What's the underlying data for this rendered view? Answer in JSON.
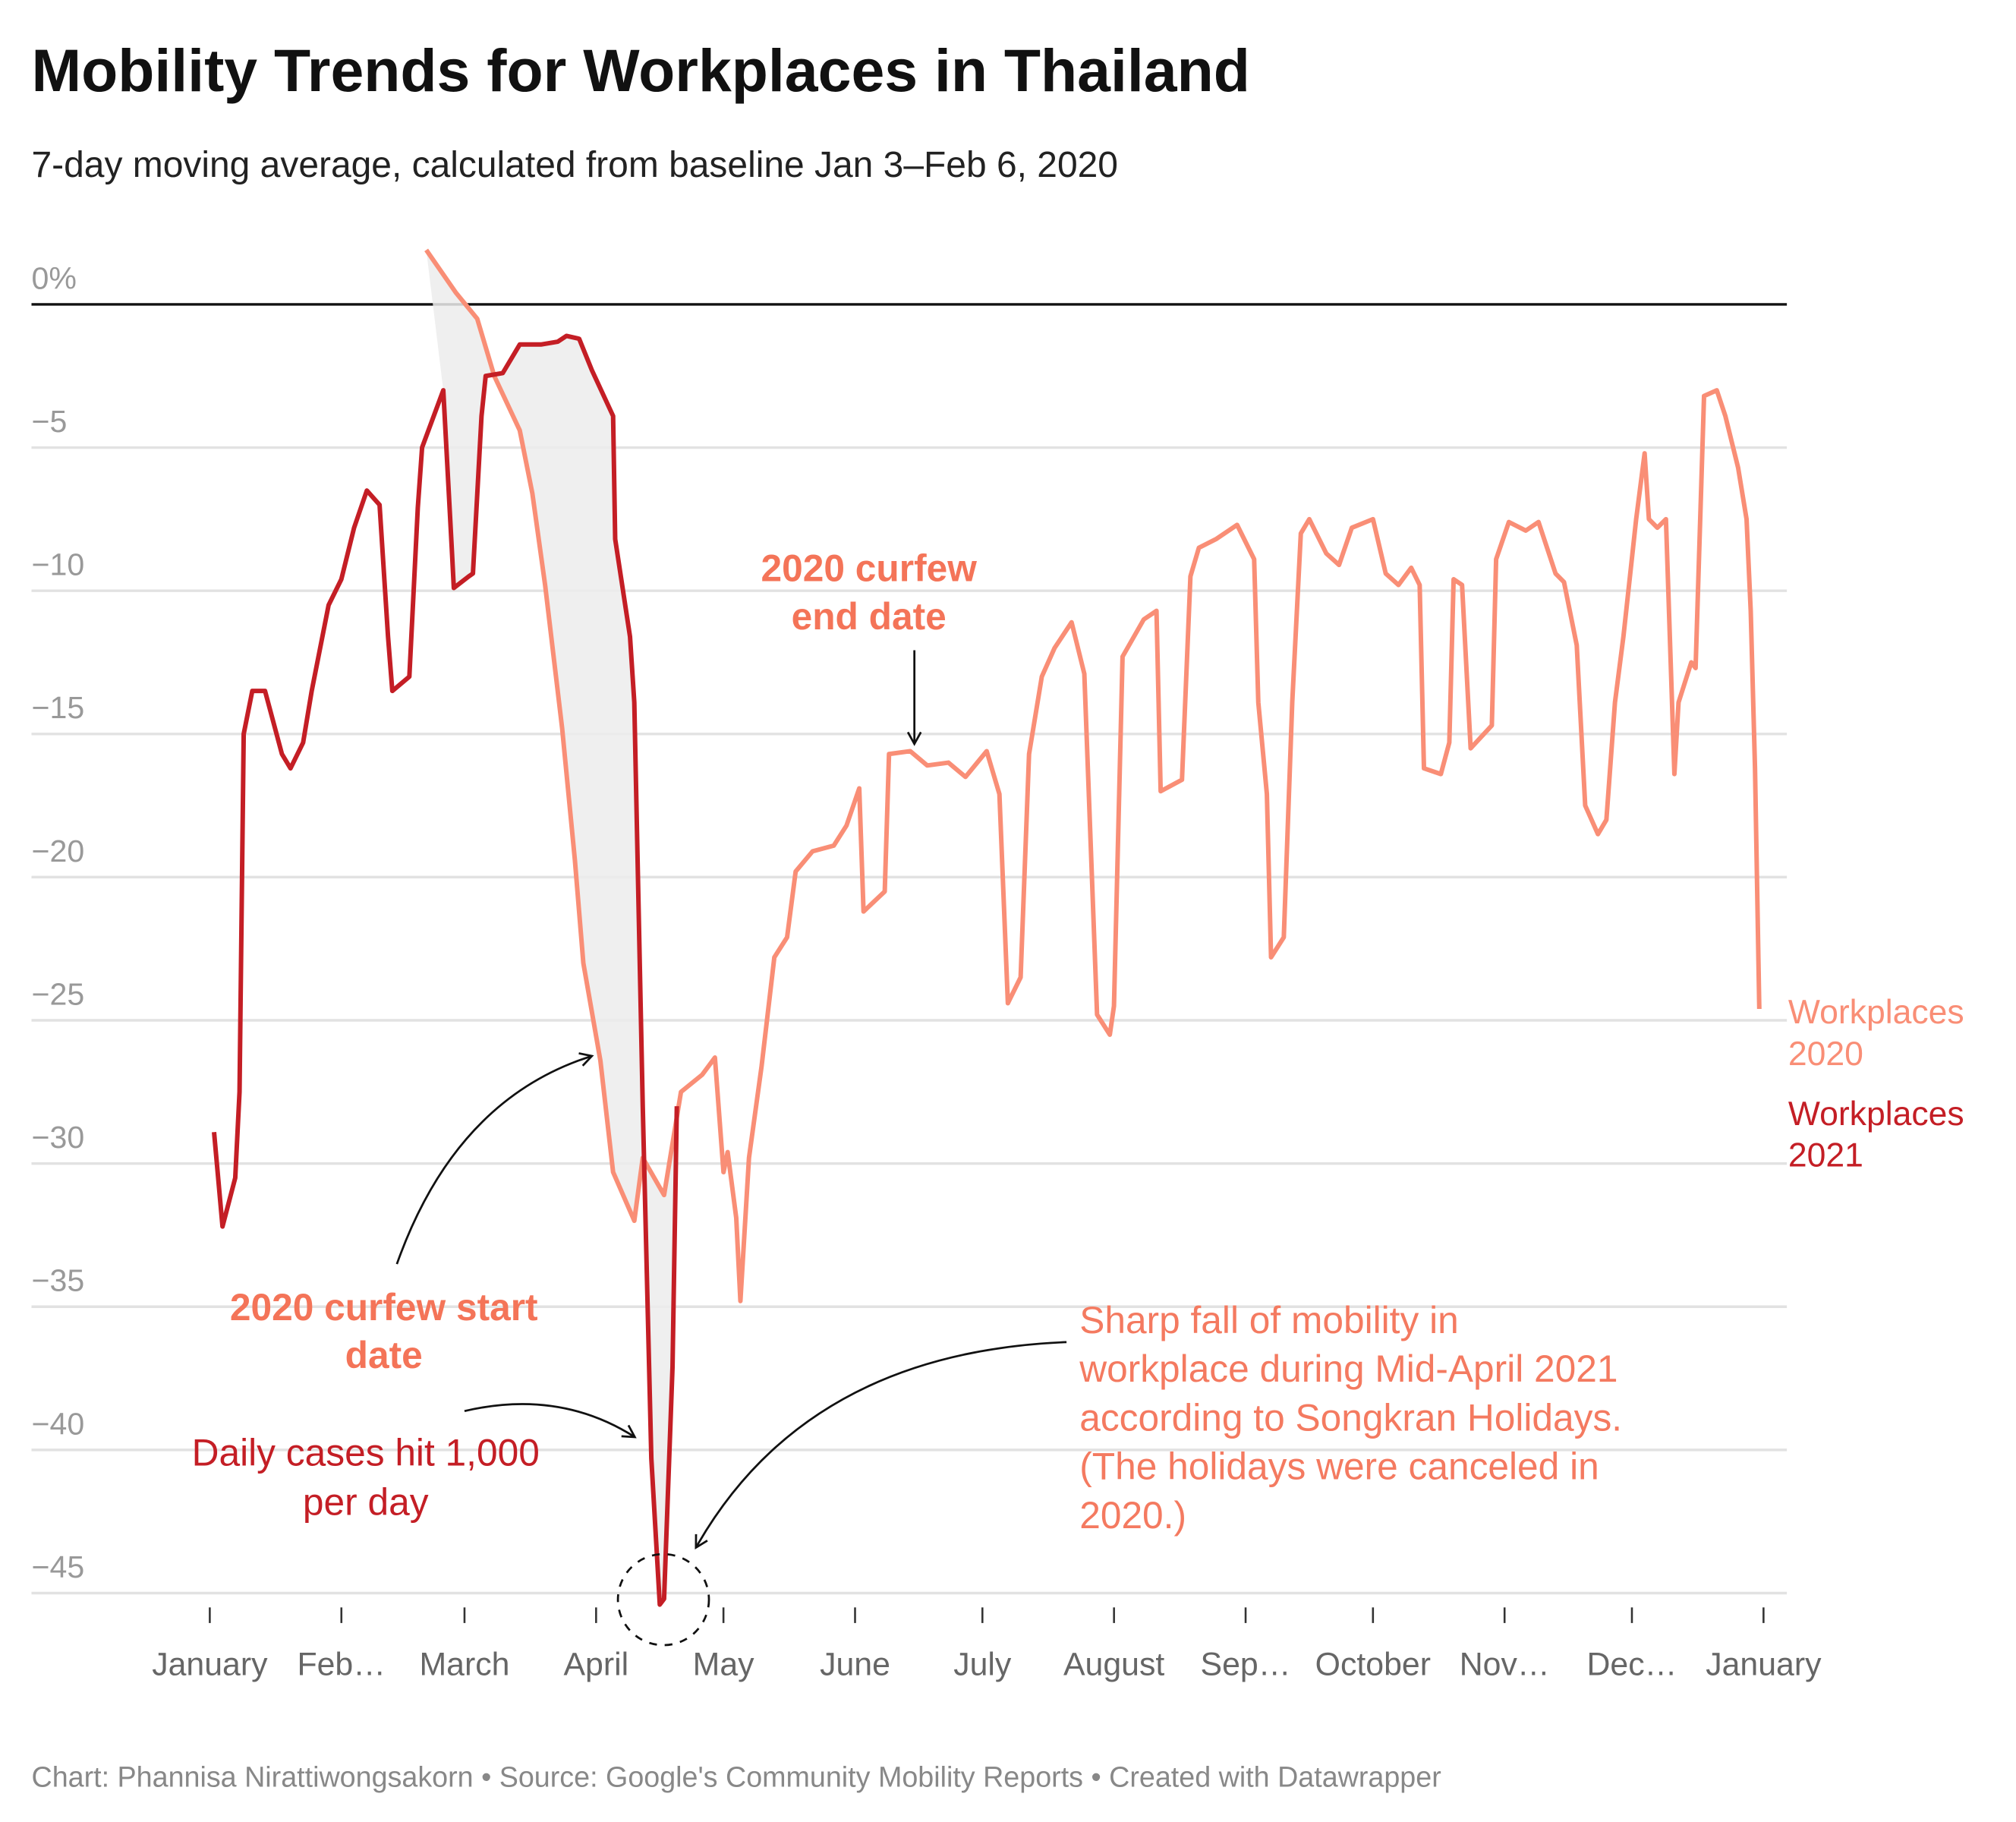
{
  "chart_data": {
    "type": "line",
    "title": "Mobility Trends for Workplaces in Thailand",
    "subtitle": "7-day moving average, calculated from baseline Jan 3–Feb 6, 2020",
    "source": "Chart: Phannisa Nirattiwongsakorn • Source: Google's Community Mobility Reports • Created with Datawrapper",
    "xlim": [
      -42,
      371.5
    ],
    "xticks": [
      {
        "value": 0,
        "label": "January"
      },
      {
        "value": 31,
        "label": "Feb…"
      },
      {
        "value": 60,
        "label": "March"
      },
      {
        "value": 91,
        "label": "April"
      },
      {
        "value": 121,
        "label": "May"
      },
      {
        "value": 152,
        "label": "June"
      },
      {
        "value": 182,
        "label": "July"
      },
      {
        "value": 213,
        "label": "August"
      },
      {
        "value": 244,
        "label": "Sep…"
      },
      {
        "value": 274,
        "label": "October"
      },
      {
        "value": 305,
        "label": "Nov…"
      },
      {
        "value": 335,
        "label": "Dec…"
      },
      {
        "value": 366,
        "label": "January"
      }
    ],
    "ylim": [
      -45.5,
      2
    ],
    "yticks": [
      {
        "value": 0,
        "label": "0%"
      },
      {
        "value": -5,
        "label": "−5"
      },
      {
        "value": -10,
        "label": "−10"
      },
      {
        "value": -15,
        "label": "−15"
      },
      {
        "value": -20,
        "label": "−20"
      },
      {
        "value": -25,
        "label": "−25"
      },
      {
        "value": -30,
        "label": "−30"
      },
      {
        "value": -35,
        "label": "−35"
      },
      {
        "value": -40,
        "label": "−40"
      },
      {
        "value": -45,
        "label": "−45"
      }
    ],
    "grid": true,
    "series": [
      {
        "name": "Workplaces 2020",
        "color": "#f98e76",
        "x": [
          51,
          58,
          63,
          67,
          73,
          76,
          79,
          83,
          86,
          88,
          92,
          95,
          100,
          102,
          107,
          111,
          116,
          119,
          121,
          122,
          124,
          125,
          127,
          130,
          133,
          136,
          138,
          142,
          147,
          150,
          153,
          154,
          159,
          160,
          165,
          169,
          174,
          178,
          183,
          186,
          188,
          191,
          193,
          196,
          199,
          203,
          206,
          209,
          212,
          213,
          215,
          220,
          223,
          224,
          229,
          231,
          233,
          237,
          242,
          246,
          247,
          249,
          250,
          253,
          255,
          257,
          259,
          263,
          266,
          269,
          274,
          277,
          280,
          283,
          285,
          286,
          290,
          292,
          293,
          295,
          297,
          302,
          303,
          306,
          310,
          313,
          317,
          319,
          322,
          324,
          327,
          329,
          331,
          333,
          336,
          338,
          339,
          341,
          343,
          345,
          346,
          349,
          350,
          352,
          355,
          357,
          360,
          362,
          363,
          364,
          365
        ],
        "values": [
          1.9,
          0.4,
          -0.5,
          -2.5,
          -4.4,
          -6.6,
          -9.8,
          -14.8,
          -19.4,
          -23,
          -26.4,
          -30.3,
          -32,
          -29.8,
          -31.1,
          -27.5,
          -26.9,
          -26.3,
          -30.3,
          -29.6,
          -31.9,
          -34.8,
          -29.8,
          -26.6,
          -22.8,
          -22.1,
          -19.8,
          -19.1,
          -18.9,
          -18.2,
          -16.9,
          -21.2,
          -20.5,
          -15.7,
          -15.6,
          -16.1,
          -16,
          -16.5,
          -15.6,
          -17.1,
          -24.4,
          -23.5,
          -15.7,
          -13,
          -12,
          -11.1,
          -12.9,
          -24.8,
          -25.5,
          -24.5,
          -12.3,
          -11,
          -10.7,
          -17,
          -16.6,
          -9.5,
          -8.5,
          -8.2,
          -7.7,
          -8.9,
          -13.9,
          -17.1,
          -22.8,
          -22.1,
          -13.9,
          -8,
          -7.5,
          -8.7,
          -9.1,
          -7.8,
          -7.5,
          -9.4,
          -9.8,
          -9.2,
          -9.8,
          -16.2,
          -16.4,
          -15.3,
          -9.6,
          -9.8,
          -15.5,
          -14.7,
          -8.9,
          -7.6,
          -7.9,
          -7.6,
          -9.4,
          -9.7,
          -11.9,
          -17.5,
          -18.5,
          -18,
          -13.9,
          -11.6,
          -7.5,
          -5.2,
          -7.5,
          -7.8,
          -7.5,
          -16.4,
          -13.9,
          -12.5,
          -12.7,
          -3.2,
          -3,
          -3.9,
          -5.7,
          -7.5,
          -10.7,
          -16.2,
          -24.6
        ]
      },
      {
        "name": "Workplaces 2021",
        "color": "#c41e25",
        "x": [
          1,
          3,
          6,
          7,
          8,
          10,
          13,
          17,
          19,
          22,
          24,
          28,
          31,
          34,
          37,
          40,
          42,
          43,
          47,
          49,
          50,
          55,
          57,
          57.5,
          61,
          62,
          64,
          65,
          69,
          73,
          78,
          82,
          84,
          87,
          90,
          95,
          95.5,
          99,
          100,
          102,
          104,
          106,
          107,
          109,
          110
        ],
        "values": [
          -28.9,
          -32.2,
          -30.5,
          -27.5,
          -15,
          -13.5,
          -13.5,
          -15.7,
          -16.2,
          -15.3,
          -13.5,
          -10.5,
          -9.6,
          -7.8,
          -6.5,
          -7,
          -11.6,
          -13.5,
          -13,
          -7.1,
          -5,
          -3,
          -8.5,
          -9.9,
          -9.5,
          -9.4,
          -3.9,
          -2.5,
          -2.4,
          -1.4,
          -1.4,
          -1.3,
          -1.1,
          -1.2,
          -2.3,
          -3.9,
          -8.2,
          -11.6,
          -13.9,
          -28,
          -40.3,
          -45.4,
          -45.2,
          -37.1,
          -28
        ]
      }
    ],
    "annotations": [
      {
        "lines": [
          "2020 curfew",
          "end date"
        ]
      },
      {
        "lines": [
          "2020 curfew start",
          "date"
        ]
      },
      {
        "lines": [
          "Daily cases hit 1,000",
          "per day"
        ]
      },
      {
        "lines": [
          "Sharp fall of mobility in",
          "workplace during Mid-April 2021",
          "according to Songkran Holidays.",
          "(The holidays were canceled in",
          "2020.)"
        ]
      }
    ]
  }
}
